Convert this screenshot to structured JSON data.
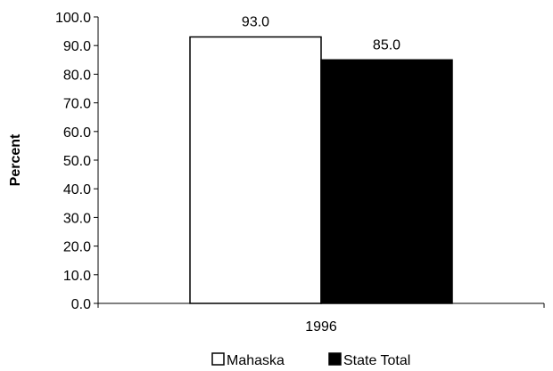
{
  "chart_data": {
    "type": "bar",
    "categories": [
      "1996"
    ],
    "series": [
      {
        "name": "Mahaska",
        "values": [
          93.0
        ],
        "color": "#ffffff"
      },
      {
        "name": "State Total",
        "values": [
          85.0
        ],
        "color": "#000000"
      }
    ],
    "ylabel": "Percent",
    "xlabel": "",
    "ylim": [
      0,
      100
    ],
    "yticks": [
      "0.0",
      "10.0",
      "20.0",
      "30.0",
      "40.0",
      "50.0",
      "60.0",
      "70.0",
      "80.0",
      "90.0",
      "100.0"
    ],
    "data_labels": [
      "93.0",
      "85.0"
    ],
    "grid": false,
    "legend_position": "bottom"
  }
}
